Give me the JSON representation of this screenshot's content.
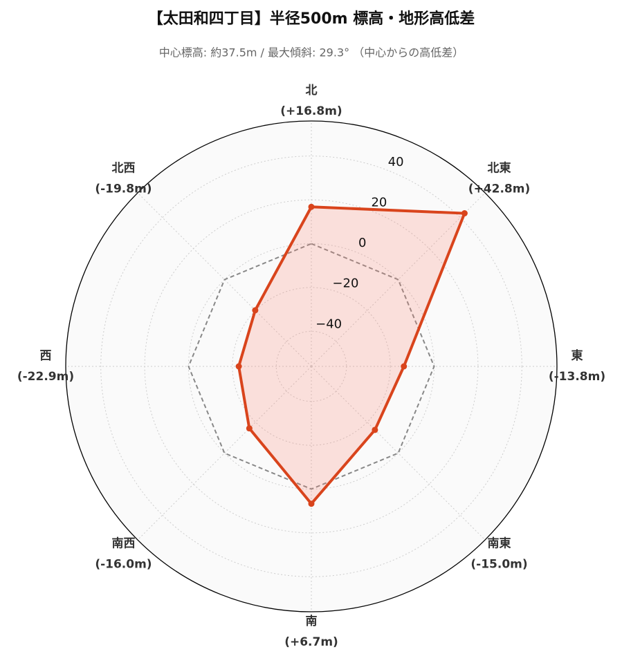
{
  "chart_data": {
    "type": "radar",
    "title": "【太田和四丁目】半径500m 標高・地形高低差",
    "subtitle": "中心標高: 約37.5m / 最大傾斜: 29.3° （中心からの高低差）",
    "categories": [
      "北",
      "北東",
      "東",
      "南東",
      "南",
      "南西",
      "西",
      "北西"
    ],
    "values": [
      16.8,
      42.8,
      -13.8,
      -15.0,
      6.7,
      -16.0,
      -22.9,
      -19.8
    ],
    "value_labels": [
      "(+16.8m)",
      "(+42.8m)",
      "(-13.8m)",
      "(-15.0m)",
      "(+6.7m)",
      "(-16.0m)",
      "(-22.9m)",
      "(-19.8m)"
    ],
    "color": "#d9441c",
    "reference_value": 0,
    "ylim": [
      -56,
      56
    ],
    "yticks": [
      {
        "value": -40,
        "label": "−40"
      },
      {
        "value": -20,
        "label": "−20"
      },
      0,
      20,
      40
    ],
    "grid": true
  }
}
